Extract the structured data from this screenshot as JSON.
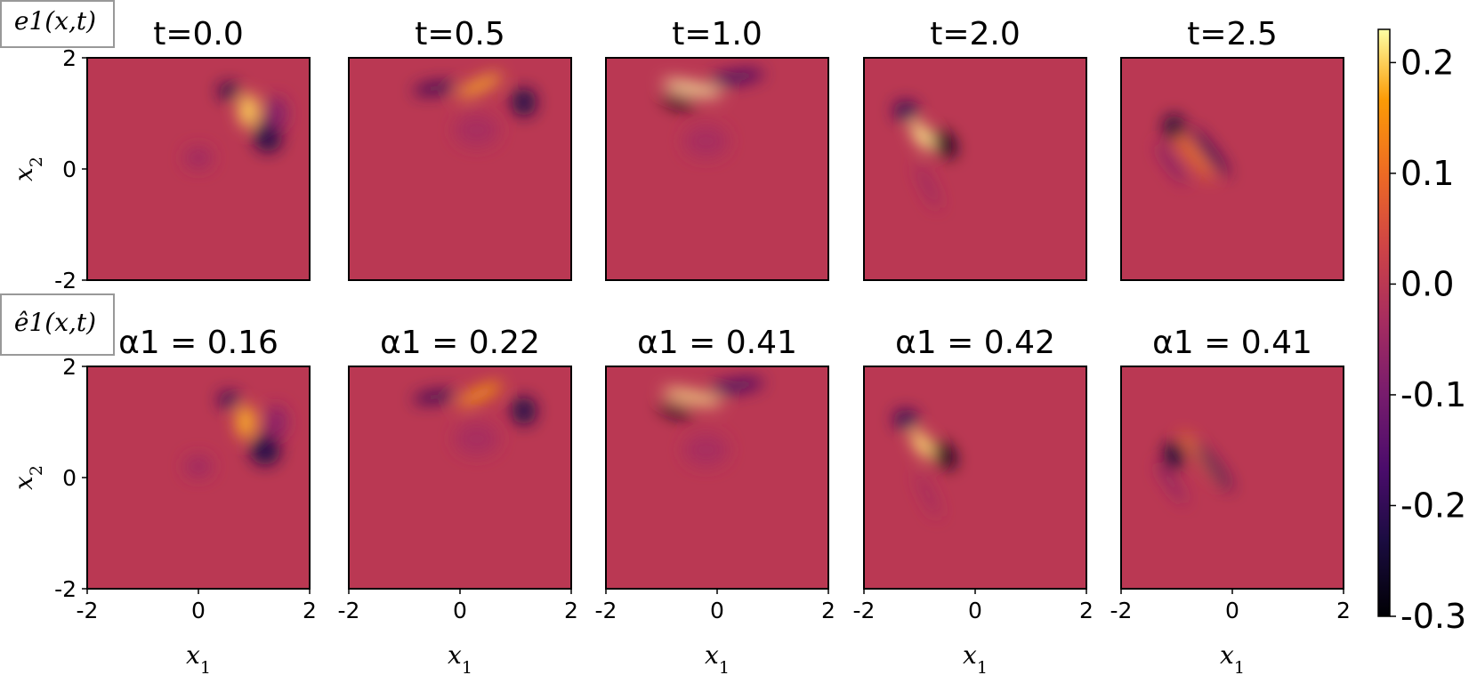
{
  "chart_data": {
    "type": "heatmap",
    "colormap": "inferno",
    "x_label": "x1",
    "y_label": "x2",
    "xlim": [
      -2,
      2
    ],
    "ylim": [
      -2,
      2
    ],
    "x_ticks": [
      "-2",
      "0",
      "2"
    ],
    "y_ticks": [
      "2",
      "0",
      "-2"
    ],
    "colorbar": {
      "range": [
        -0.3,
        0.23
      ],
      "ticks": [
        0.2,
        0.1,
        0.0,
        -0.1,
        -0.2,
        -0.3
      ],
      "tick_labels": [
        "0.2",
        "0.1",
        "0.0",
        "-0.1",
        "-0.2",
        "-0.3"
      ]
    },
    "rows": [
      {
        "row_label": "e1(x,t)",
        "panels": [
          {
            "title": "t=0.0",
            "blobs": [
              {
                "x": 0.9,
                "y": 1.05,
                "sx": 0.18,
                "sy": 0.3,
                "angle": 0,
                "a": 0.2
              },
              {
                "x": 0.55,
                "y": 1.4,
                "sx": 0.2,
                "sy": 0.14,
                "angle": 0,
                "a": -0.22
              },
              {
                "x": 1.25,
                "y": 0.6,
                "sx": 0.25,
                "sy": 0.3,
                "angle": 0,
                "a": -0.22
              },
              {
                "x": 1.4,
                "y": 1.0,
                "sx": 0.2,
                "sy": 0.3,
                "angle": 0,
                "a": -0.08
              },
              {
                "x": 0.0,
                "y": 0.2,
                "sx": 0.25,
                "sy": 0.2,
                "angle": 0,
                "a": -0.04
              }
            ]
          },
          {
            "title": "t=0.5",
            "blobs": [
              {
                "x": 0.35,
                "y": 1.5,
                "sx": 0.45,
                "sy": 0.1,
                "angle": -25,
                "a": 0.18
              },
              {
                "x": -0.45,
                "y": 1.45,
                "sx": 0.4,
                "sy": 0.1,
                "angle": -8,
                "a": -0.2
              },
              {
                "x": 1.15,
                "y": 1.2,
                "sx": 0.22,
                "sy": 0.25,
                "angle": 0,
                "a": -0.22
              },
              {
                "x": 0.3,
                "y": 0.7,
                "sx": 0.4,
                "sy": 0.3,
                "angle": 0,
                "a": -0.03
              }
            ]
          },
          {
            "title": "t=1.0",
            "blobs": [
              {
                "x": -0.45,
                "y": 1.45,
                "sx": 0.55,
                "sy": 0.09,
                "angle": 12,
                "a": 0.23
              },
              {
                "x": -0.7,
                "y": 1.2,
                "sx": 0.32,
                "sy": 0.09,
                "angle": 18,
                "a": -0.28
              },
              {
                "x": 0.35,
                "y": 1.65,
                "sx": 0.5,
                "sy": 0.11,
                "angle": -8,
                "a": -0.18
              },
              {
                "x": -0.2,
                "y": 0.5,
                "sx": 0.4,
                "sy": 0.3,
                "angle": 0,
                "a": -0.03
              }
            ]
          },
          {
            "title": "t=2.0",
            "blobs": [
              {
                "x": -0.95,
                "y": 0.6,
                "sx": 0.13,
                "sy": 0.3,
                "angle": -35,
                "a": 0.22
              },
              {
                "x": -1.25,
                "y": 1.05,
                "sx": 0.22,
                "sy": 0.17,
                "angle": 0,
                "a": -0.2
              },
              {
                "x": -0.55,
                "y": 0.45,
                "sx": 0.17,
                "sy": 0.27,
                "angle": -35,
                "a": -0.27
              },
              {
                "x": -0.85,
                "y": -0.3,
                "sx": 0.08,
                "sy": 0.45,
                "angle": -25,
                "a": -0.05
              }
            ]
          },
          {
            "title": "t=2.5",
            "blobs": [
              {
                "x": -0.75,
                "y": 0.3,
                "sx": 0.07,
                "sy": 0.65,
                "angle": -38,
                "a": 0.15
              },
              {
                "x": -1.05,
                "y": 0.75,
                "sx": 0.18,
                "sy": 0.22,
                "angle": 0,
                "a": -0.24
              },
              {
                "x": -0.4,
                "y": 0.3,
                "sx": 0.09,
                "sy": 0.55,
                "angle": -38,
                "a": -0.2
              },
              {
                "x": -1.1,
                "y": 0.1,
                "sx": 0.07,
                "sy": 0.45,
                "angle": -35,
                "a": -0.1
              }
            ]
          }
        ]
      },
      {
        "row_label": "ê1(x,t)",
        "panels": [
          {
            "title": "α1 = 0.16",
            "alpha": 0.16,
            "blobs": [
              {
                "x": 0.85,
                "y": 1.0,
                "sx": 0.17,
                "sy": 0.3,
                "angle": 0,
                "a": 0.18
              },
              {
                "x": 0.55,
                "y": 1.4,
                "sx": 0.2,
                "sy": 0.14,
                "angle": 0,
                "a": -0.2
              },
              {
                "x": 1.2,
                "y": 0.5,
                "sx": 0.27,
                "sy": 0.28,
                "angle": 0,
                "a": -0.22
              },
              {
                "x": 1.4,
                "y": 1.0,
                "sx": 0.2,
                "sy": 0.3,
                "angle": 0,
                "a": -0.07
              },
              {
                "x": 0.0,
                "y": 0.2,
                "sx": 0.25,
                "sy": 0.2,
                "angle": 0,
                "a": -0.04
              }
            ]
          },
          {
            "title": "α1 = 0.22",
            "alpha": 0.22,
            "blobs": [
              {
                "x": 0.35,
                "y": 1.5,
                "sx": 0.45,
                "sy": 0.1,
                "angle": -25,
                "a": 0.17
              },
              {
                "x": -0.45,
                "y": 1.45,
                "sx": 0.4,
                "sy": 0.1,
                "angle": -8,
                "a": -0.2
              },
              {
                "x": 1.15,
                "y": 1.2,
                "sx": 0.22,
                "sy": 0.25,
                "angle": 0,
                "a": -0.22
              },
              {
                "x": 0.3,
                "y": 0.7,
                "sx": 0.4,
                "sy": 0.3,
                "angle": 0,
                "a": -0.03
              }
            ]
          },
          {
            "title": "α1 = 0.41",
            "alpha": 0.41,
            "blobs": [
              {
                "x": -0.45,
                "y": 1.45,
                "sx": 0.55,
                "sy": 0.09,
                "angle": 12,
                "a": 0.22
              },
              {
                "x": -0.75,
                "y": 1.2,
                "sx": 0.32,
                "sy": 0.09,
                "angle": 18,
                "a": -0.27
              },
              {
                "x": 0.35,
                "y": 1.65,
                "sx": 0.5,
                "sy": 0.11,
                "angle": -8,
                "a": -0.18
              },
              {
                "x": -0.2,
                "y": 0.5,
                "sx": 0.4,
                "sy": 0.3,
                "angle": 0,
                "a": -0.03
              }
            ]
          },
          {
            "title": "α1 = 0.42",
            "alpha": 0.42,
            "blobs": [
              {
                "x": -0.95,
                "y": 0.6,
                "sx": 0.13,
                "sy": 0.3,
                "angle": -35,
                "a": 0.21
              },
              {
                "x": -1.25,
                "y": 1.05,
                "sx": 0.22,
                "sy": 0.17,
                "angle": 0,
                "a": -0.2
              },
              {
                "x": -0.55,
                "y": 0.4,
                "sx": 0.17,
                "sy": 0.27,
                "angle": -35,
                "a": -0.27
              },
              {
                "x": -0.85,
                "y": -0.3,
                "sx": 0.08,
                "sy": 0.45,
                "angle": -25,
                "a": -0.04
              }
            ]
          },
          {
            "title": "α1 = 0.41",
            "alpha": 0.41,
            "blobs": [
              {
                "x": -0.55,
                "y": 0.35,
                "sx": 0.07,
                "sy": 0.6,
                "angle": -38,
                "a": 0.15
              },
              {
                "x": -1.05,
                "y": 0.4,
                "sx": 0.18,
                "sy": 0.25,
                "angle": 0,
                "a": -0.24
              },
              {
                "x": -0.35,
                "y": 0.2,
                "sx": 0.09,
                "sy": 0.55,
                "angle": -38,
                "a": -0.2
              },
              {
                "x": -1.1,
                "y": -0.1,
                "sx": 0.07,
                "sy": 0.45,
                "angle": -35,
                "a": -0.08
              }
            ]
          }
        ]
      }
    ]
  }
}
